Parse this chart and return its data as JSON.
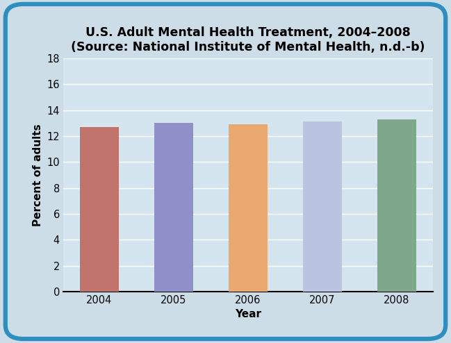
{
  "title": "U.S. Adult Mental Health Treatment, 2004–2008\n(Source: National Institute of Mental Health, n.d.-b)",
  "xlabel": "Year",
  "ylabel": "Percent of adults",
  "categories": [
    "2004",
    "2005",
    "2006",
    "2007",
    "2008"
  ],
  "values": [
    12.7,
    13.0,
    12.9,
    13.1,
    13.3
  ],
  "bar_colors": [
    "#c0736a",
    "#9090c8",
    "#e8a870",
    "#b8c4e0",
    "#7fa88a"
  ],
  "ylim": [
    0,
    18
  ],
  "yticks": [
    0,
    2,
    4,
    6,
    8,
    10,
    12,
    14,
    16,
    18
  ],
  "background_color": "#ccdde8",
  "plot_background_color": "#d5e5ef",
  "grid_color": "#ffffff",
  "title_fontsize": 12.5,
  "axis_label_fontsize": 11,
  "tick_fontsize": 10.5,
  "bar_width": 0.52,
  "border_color": "#2e8fbf",
  "border_linewidth": 4.5
}
